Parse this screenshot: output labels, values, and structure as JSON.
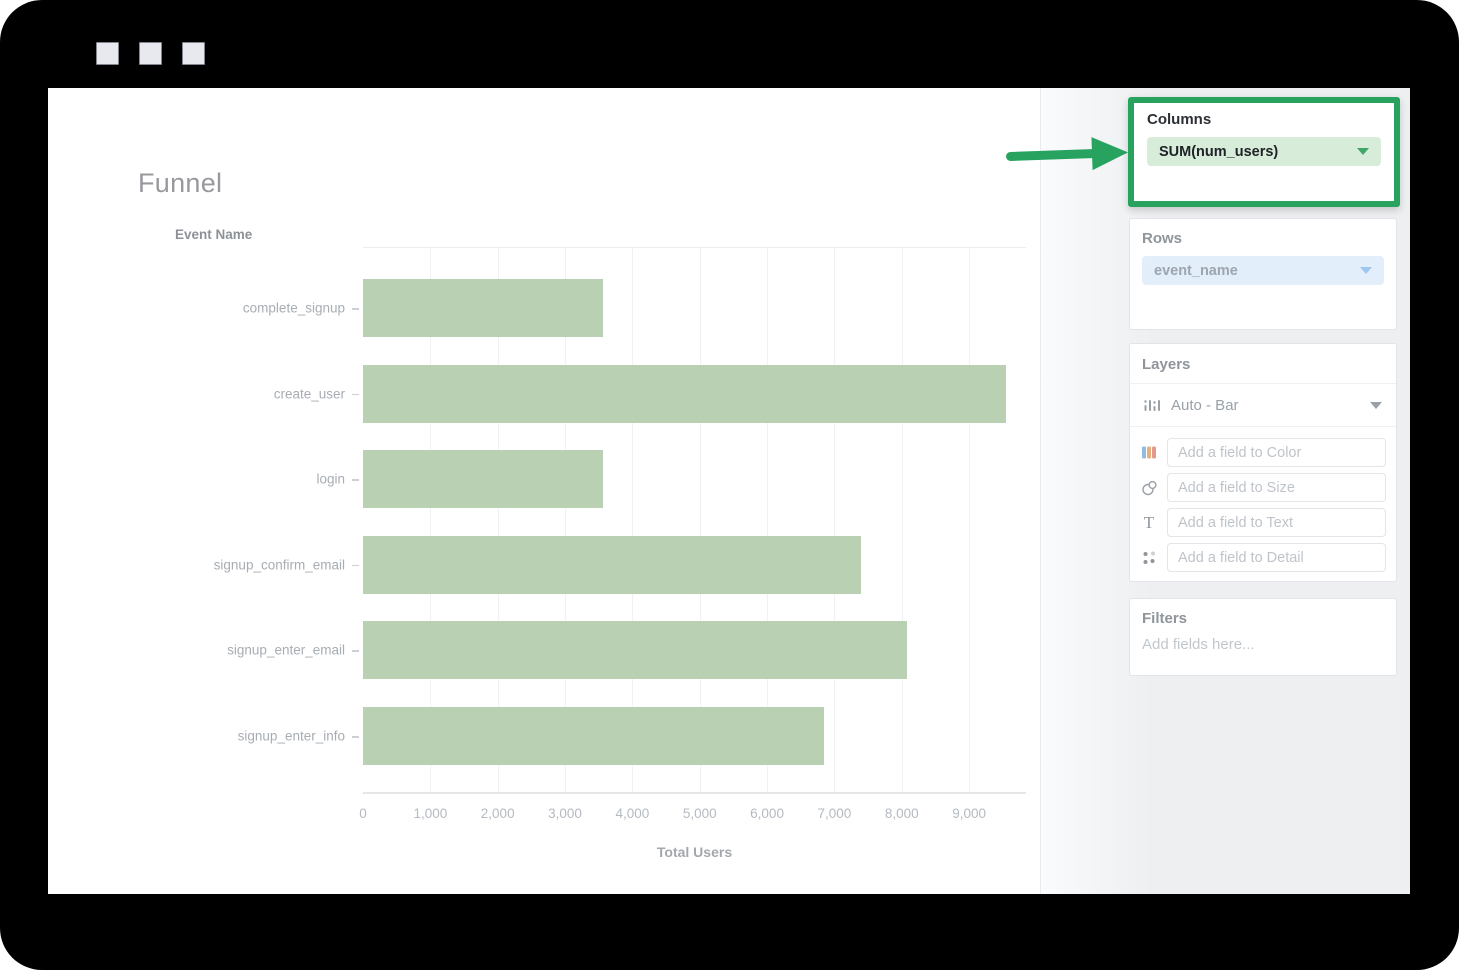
{
  "chart": {
    "title": "Funnel",
    "y_axis_title": "Event Name",
    "x_axis_title": "Total Users"
  },
  "chart_data": {
    "type": "bar",
    "orientation": "horizontal",
    "title": "Funnel",
    "categories": [
      "complete_signup",
      "create_user",
      "login",
      "signup_confirm_email",
      "signup_enter_email",
      "signup_enter_info"
    ],
    "values": [
      3570,
      9550,
      3570,
      7400,
      8080,
      6840
    ],
    "xlabel": "Total Users",
    "ylabel": "Event Name",
    "xlim": [
      0,
      9845
    ],
    "xticks": [
      0,
      1000,
      2000,
      3000,
      4000,
      5000,
      6000,
      7000,
      8000,
      9000
    ],
    "grid": true,
    "legend": false,
    "bar_color": "#b9d0b3"
  },
  "sidebar": {
    "columns": {
      "label": "Columns",
      "field": "SUM(num_users)"
    },
    "rows": {
      "label": "Rows",
      "field": "event_name"
    },
    "layers": {
      "label": "Layers",
      "layer_type": "Auto - Bar",
      "fields": [
        {
          "icon": "color-bars-icon",
          "placeholder": "Add a field to Color"
        },
        {
          "icon": "size-circles-icon",
          "placeholder": "Add a field to Size"
        },
        {
          "icon": "text-icon",
          "placeholder": "Add a field to Text"
        },
        {
          "icon": "detail-dots-icon",
          "placeholder": "Add a field to Detail"
        }
      ]
    },
    "filters": {
      "label": "Filters",
      "placeholder": "Add fields here..."
    }
  },
  "colors": {
    "accent_green": "#27a35f",
    "bar_green": "#b9d0b3",
    "pill_green_bg": "#d8ecda",
    "pill_blue_bg": "#e3eefb",
    "sidebar_bg": "#edeff1",
    "frame_black": "#000000"
  }
}
